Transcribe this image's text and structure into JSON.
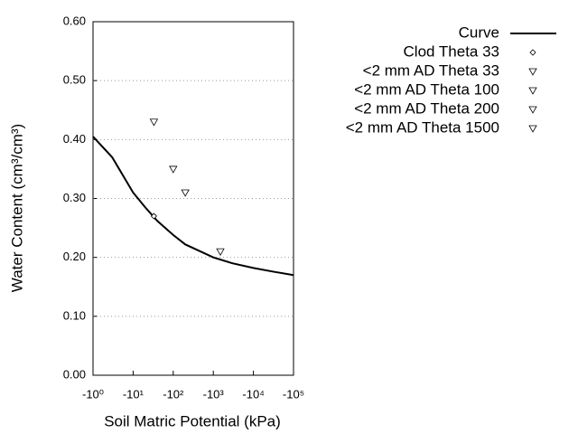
{
  "chart_data": {
    "type": "line",
    "x_label": "Soil Matric Potential (kPa)",
    "y_label": "Water Content (cm³/cm³)",
    "xscale": "log-magnitude",
    "xlim": [
      -1,
      -100000
    ],
    "xticks": [
      {
        "value": -1,
        "label": "-10⁰"
      },
      {
        "value": -10,
        "label": "-10¹"
      },
      {
        "value": -100,
        "label": "-10²"
      },
      {
        "value": -1000,
        "label": "-10³"
      },
      {
        "value": -10000,
        "label": "-10⁴"
      },
      {
        "value": -100000,
        "label": "-10⁵"
      }
    ],
    "ylim": [
      0,
      0.6
    ],
    "yticks": [
      {
        "value": 0,
        "label": "0.00"
      },
      {
        "value": 0.1,
        "label": "0.10"
      },
      {
        "value": 0.2,
        "label": "0.20"
      },
      {
        "value": 0.3,
        "label": "0.30"
      },
      {
        "value": 0.4,
        "label": "0.40"
      },
      {
        "value": 0.5,
        "label": "0.50"
      },
      {
        "value": 0.6,
        "label": "0.60"
      }
    ],
    "grid": true,
    "legend": "right",
    "series": [
      {
        "name": "Curve",
        "color": "#000000",
        "style": "line",
        "x": [
          -1,
          -3,
          -10,
          -20,
          -40,
          -100,
          -200,
          -1000,
          -3000,
          -10000,
          -30000,
          -100000
        ],
        "values": [
          0.405,
          0.37,
          0.31,
          0.285,
          0.262,
          0.238,
          0.222,
          0.2,
          0.19,
          0.182,
          0.176,
          0.17
        ]
      },
      {
        "name": "Clod Theta 33",
        "color": "#000000",
        "style": "diamond",
        "x": [
          -33
        ],
        "values": [
          0.27
        ]
      },
      {
        "name": "<2 mm AD Theta 33",
        "color": "#000000",
        "style": "triangle",
        "x": [
          -33
        ],
        "values": [
          0.43
        ]
      },
      {
        "name": "<2 mm AD Theta 100",
        "color": "#000000",
        "style": "triangle",
        "x": [
          -100
        ],
        "values": [
          0.35
        ]
      },
      {
        "name": "<2 mm AD Theta 200",
        "color": "#000000",
        "style": "triangle",
        "x": [
          -200
        ],
        "values": [
          0.31
        ]
      },
      {
        "name": "<2 mm AD Theta 1500",
        "color": "#000000",
        "style": "triangle",
        "x": [
          -1500
        ],
        "values": [
          0.21
        ]
      }
    ]
  }
}
